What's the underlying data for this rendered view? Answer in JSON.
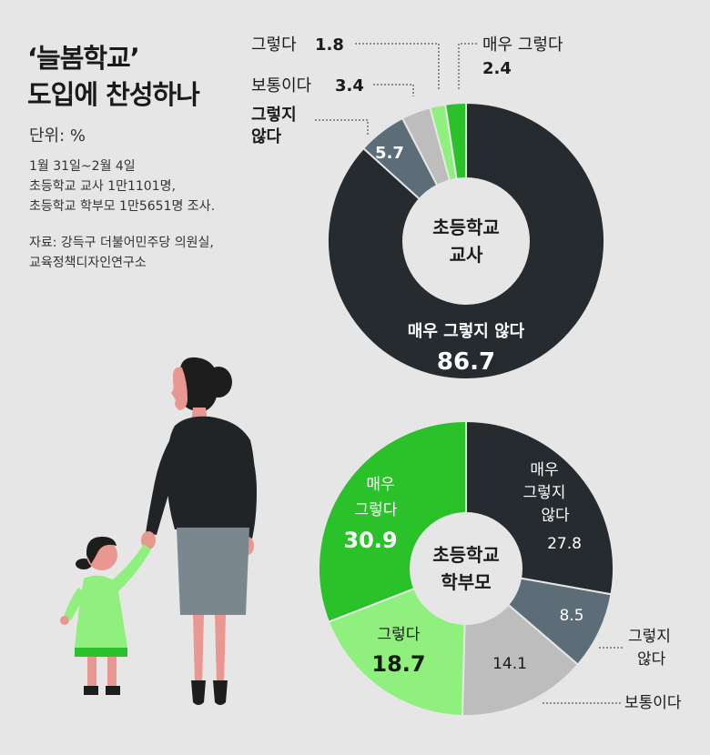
{
  "title": {
    "line1": "‘늘봄학교’",
    "line2": "도입에 찬성하나"
  },
  "unit": "단위: %",
  "survey": {
    "period": "1월 31일~2월 4일",
    "teachers": "초등학교 교사 1만1101명,",
    "parents": "초등학교 학부모 1만5651명 조사."
  },
  "source": {
    "line1": "자료: 강득구 더불어민주당 의원실,",
    "line2": "교육정책디자인연구소"
  },
  "colors": {
    "very_agree": "#2bc12a",
    "agree": "#8ff07d",
    "neutral": "#bdbdbd",
    "disagree": "#5c6d77",
    "very_disagree": "#262b30",
    "background": "#e6e6e6"
  },
  "chart_data": [
    {
      "type": "pie",
      "center_label": [
        "초등학교",
        "교사"
      ],
      "slices": [
        {
          "label": "매우 그렇지 않다",
          "value": 86.7,
          "color": "#262b30"
        },
        {
          "label": "그렇지 않다",
          "value": 5.7,
          "color": "#5c6d77"
        },
        {
          "label": "보통이다",
          "value": 3.4,
          "color": "#bdbdbd"
        },
        {
          "label": "그렇다",
          "value": 1.8,
          "color": "#8ff07d"
        },
        {
          "label": "매우 그렇다",
          "value": 2.4,
          "color": "#2bc12a"
        }
      ]
    },
    {
      "type": "pie",
      "center_label": [
        "초등학교",
        "학부모"
      ],
      "slices": [
        {
          "label": "매우 그렇지 않다",
          "value": 27.8,
          "color": "#262b30"
        },
        {
          "label": "그렇지 않다",
          "value": 8.5,
          "color": "#5c6d77"
        },
        {
          "label": "보통이다",
          "value": 14.1,
          "color": "#bdbdbd"
        },
        {
          "label": "그렇다",
          "value": 18.7,
          "color": "#8ff07d"
        },
        {
          "label": "매우 그렇다",
          "value": 30.9,
          "color": "#2bc12a"
        }
      ]
    }
  ],
  "labels": {
    "teacher": {
      "very_disagree_name": "매우 그렇지 않다",
      "very_disagree_value": "86.7",
      "disagree_name_1": "그렇지",
      "disagree_name_2": "않다",
      "disagree_value": "5.7",
      "neutral_name": "보통이다",
      "neutral_value": "3.4",
      "agree_name": "그렇다",
      "agree_value": "1.8",
      "very_agree_name": "매우 그렇다",
      "very_agree_value": "2.4"
    },
    "parent": {
      "very_disagree_name_1": "매우",
      "very_disagree_name_2": "그렇지",
      "very_disagree_name_3": "않다",
      "very_disagree_value": "27.8",
      "disagree_name_1": "그렇지",
      "disagree_name_2": "않다",
      "disagree_value": "8.5",
      "neutral_name": "보통이다",
      "neutral_value": "14.1",
      "agree_name": "그렇다",
      "agree_value": "18.7",
      "very_agree_name_1": "매우",
      "very_agree_name_2": "그렇다",
      "very_agree_value": "30.9"
    }
  },
  "illustration": "mother-and-child-illustration"
}
